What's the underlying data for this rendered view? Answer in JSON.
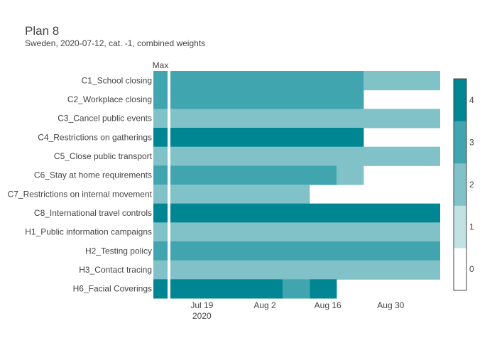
{
  "chart_data": {
    "type": "heatmap",
    "title": "Plan 8",
    "subtitle": "Sweden, 2020-07-12, cat. -1, combined weights",
    "max_label": "Max",
    "rows": [
      "C1_School closing",
      "C2_Workplace closing",
      "C3_Cancel public events",
      "C4_Restrictions on gatherings",
      "C5_Close public transport",
      "C6_Stay at home requirements",
      "C7_Restrictions on internal movement",
      "C8_International travel controls",
      "H1_Public information campaigns",
      "H2_Testing policy",
      "H3_Contact tracing",
      "H6_Facial Coverings"
    ],
    "max_values": [
      3,
      3,
      2,
      4,
      2,
      3,
      2,
      4,
      2,
      3,
      2,
      4
    ],
    "x_start": "2020-07-12",
    "x_end": "2020-09-10",
    "segments": [
      [
        {
          "start": "2020-07-12",
          "end": "2020-08-24",
          "value": 3
        },
        {
          "start": "2020-08-24",
          "end": "2020-09-10",
          "value": 2
        }
      ],
      [
        {
          "start": "2020-07-12",
          "end": "2020-08-24",
          "value": 3
        }
      ],
      [
        {
          "start": "2020-07-12",
          "end": "2020-09-10",
          "value": 2
        }
      ],
      [
        {
          "start": "2020-07-12",
          "end": "2020-08-24",
          "value": 4
        }
      ],
      [
        {
          "start": "2020-07-12",
          "end": "2020-09-10",
          "value": 2
        }
      ],
      [
        {
          "start": "2020-07-12",
          "end": "2020-08-18",
          "value": 3
        },
        {
          "start": "2020-08-18",
          "end": "2020-08-24",
          "value": 2
        }
      ],
      [
        {
          "start": "2020-07-12",
          "end": "2020-08-12",
          "value": 2
        }
      ],
      [
        {
          "start": "2020-07-12",
          "end": "2020-09-10",
          "value": 4
        }
      ],
      [
        {
          "start": "2020-07-12",
          "end": "2020-09-10",
          "value": 2
        }
      ],
      [
        {
          "start": "2020-07-12",
          "end": "2020-09-10",
          "value": 3
        }
      ],
      [
        {
          "start": "2020-07-12",
          "end": "2020-09-10",
          "value": 2
        }
      ],
      [
        {
          "start": "2020-07-12",
          "end": "2020-08-06",
          "value": 4
        },
        {
          "start": "2020-08-06",
          "end": "2020-08-12",
          "value": 3
        },
        {
          "start": "2020-08-12",
          "end": "2020-08-18",
          "value": 4
        }
      ]
    ],
    "x_ticks": [
      {
        "date": "2020-07-19",
        "label": "Jul 19",
        "sublabel": "2020"
      },
      {
        "date": "2020-08-02",
        "label": "Aug 2",
        "sublabel": ""
      },
      {
        "date": "2020-08-16",
        "label": "Aug 16",
        "sublabel": ""
      },
      {
        "date": "2020-08-30",
        "label": "Aug 30",
        "sublabel": ""
      }
    ],
    "colorscale": {
      "min": 0,
      "max": 4,
      "colors": [
        "#ffffff",
        "#c2e1e3",
        "#80c2c8",
        "#40a5ae",
        "#008592"
      ],
      "ticks": [
        "0",
        "1",
        "2",
        "3",
        "4"
      ]
    },
    "legend_placement": "right",
    "grid": false
  }
}
